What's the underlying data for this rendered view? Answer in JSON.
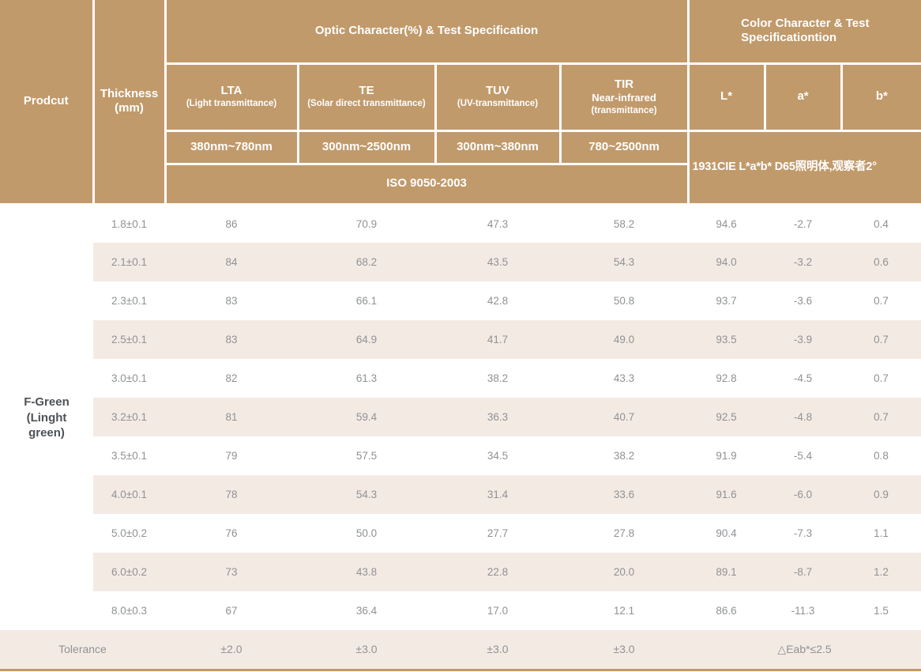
{
  "colors": {
    "header_bg": "#c19a6b",
    "header_text": "#ffffff",
    "row_shade": "#f4eae4",
    "data_text": "#8f9294",
    "product_text": "#4d5257",
    "bottom_border": "#c19a6b"
  },
  "header": {
    "product": "Prodcut",
    "thickness": "Thickness\n(mm)",
    "optic_group": "Optic Character(%) & Test Specification",
    "color_group": "Color Character & Test\nSpecificationtion",
    "optic_columns": [
      {
        "abbr": "LTA",
        "desc": "(Light transmittance)",
        "range": "380nm~780nm"
      },
      {
        "abbr": "TE",
        "desc": "(Solar direct transmittance)",
        "range": "300nm~2500nm"
      },
      {
        "abbr": "TUV",
        "desc": "(UV-transmittance)",
        "range": "300nm~380nm"
      },
      {
        "abbr": "TIR",
        "mid": "Near-infrared",
        "desc": "(transmittance)",
        "range": "780~2500nm"
      }
    ],
    "color_columns": [
      "L*",
      "a*",
      "b*"
    ],
    "optic_standard": "ISO 9050-2003",
    "color_standard": "1931CIE L*a*b*  D65照明体,观察者2°"
  },
  "product_name": "F-Green\n(Linght\ngreen)",
  "rows": [
    {
      "thickness": "1.8±0.1",
      "lta": "86",
      "te": "70.9",
      "tuv": "47.3",
      "tir": "58.2",
      "l": "94.6",
      "a": "-2.7",
      "b": "0.4"
    },
    {
      "thickness": "2.1±0.1",
      "lta": "84",
      "te": "68.2",
      "tuv": "43.5",
      "tir": "54.3",
      "l": "94.0",
      "a": "-3.2",
      "b": "0.6"
    },
    {
      "thickness": "2.3±0.1",
      "lta": "83",
      "te": "66.1",
      "tuv": "42.8",
      "tir": "50.8",
      "l": "93.7",
      "a": "-3.6",
      "b": "0.7"
    },
    {
      "thickness": "2.5±0.1",
      "lta": "83",
      "te": "64.9",
      "tuv": "41.7",
      "tir": "49.0",
      "l": "93.5",
      "a": "-3.9",
      "b": "0.7"
    },
    {
      "thickness": "3.0±0.1",
      "lta": "82",
      "te": "61.3",
      "tuv": "38.2",
      "tir": "43.3",
      "l": "92.8",
      "a": "-4.5",
      "b": "0.7"
    },
    {
      "thickness": "3.2±0.1",
      "lta": "81",
      "te": "59.4",
      "tuv": "36.3",
      "tir": "40.7",
      "l": "92.5",
      "a": "-4.8",
      "b": "0.7"
    },
    {
      "thickness": "3.5±0.1",
      "lta": "79",
      "te": "57.5",
      "tuv": "34.5",
      "tir": "38.2",
      "l": "91.9",
      "a": "-5.4",
      "b": "0.8"
    },
    {
      "thickness": "4.0±0.1",
      "lta": "78",
      "te": "54.3",
      "tuv": "31.4",
      "tir": "33.6",
      "l": "91.6",
      "a": "-6.0",
      "b": "0.9"
    },
    {
      "thickness": "5.0±0.2",
      "lta": "76",
      "te": "50.0",
      "tuv": "27.7",
      "tir": "27.8",
      "l": "90.4",
      "a": "-7.3",
      "b": "1.1"
    },
    {
      "thickness": "6.0±0.2",
      "lta": "73",
      "te": "43.8",
      "tuv": "22.8",
      "tir": "20.0",
      "l": "89.1",
      "a": "-8.7",
      "b": "1.2"
    },
    {
      "thickness": "8.0±0.3",
      "lta": "67",
      "te": "36.4",
      "tuv": "17.0",
      "tir": "12.1",
      "l": "86.6",
      "a": "-11.3",
      "b": "1.5"
    }
  ],
  "tolerance": {
    "label": "Tolerance",
    "lta": "±2.0",
    "te": "±3.0",
    "tuv": "±3.0",
    "tir": "±3.0",
    "color": "△Eab*≤2.5"
  }
}
